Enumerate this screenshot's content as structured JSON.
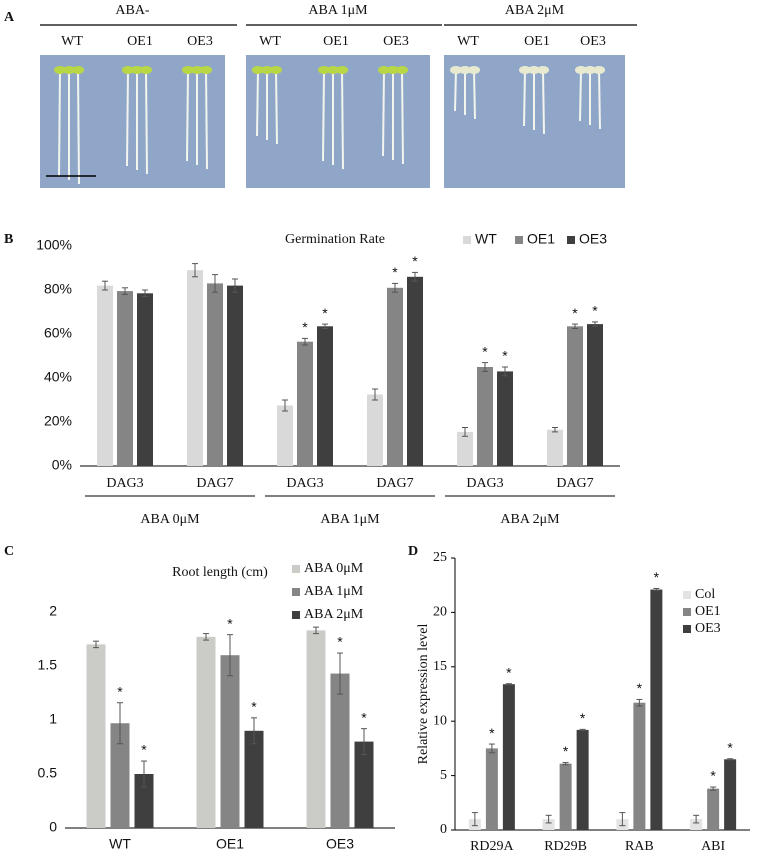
{
  "panel_a": {
    "label": "A",
    "groups": [
      {
        "label": "ABA-",
        "lines": [
          "WT",
          "OE1",
          "OE3"
        ]
      },
      {
        "label": "ABA 1μM",
        "lines": [
          "WT",
          "OE1",
          "OE3"
        ]
      },
      {
        "label": "ABA 2μM",
        "lines": [
          "WT",
          "OE1",
          "OE3"
        ]
      }
    ]
  },
  "chart_data": [
    {
      "type": "bar",
      "panel": "B",
      "title": "Germination Rate",
      "categories": [
        "DAG3",
        "DAG7",
        "DAG3",
        "DAG7",
        "DAG3",
        "DAG7"
      ],
      "group_labels": [
        "ABA 0μM",
        "ABA 1μM",
        "ABA 2μM"
      ],
      "series": [
        {
          "name": "WT",
          "color": "#d9d9d9",
          "values": [
            82,
            89,
            27.5,
            32.5,
            15.5,
            16.5
          ],
          "errors": [
            2,
            3,
            2.5,
            2.5,
            2,
            1
          ],
          "marks": [
            null,
            null,
            null,
            null,
            null,
            null
          ]
        },
        {
          "name": "OE1",
          "color": "#858585",
          "values": [
            79.5,
            83,
            56.5,
            81,
            45,
            63.5
          ],
          "errors": [
            1.5,
            4,
            1.5,
            2,
            2,
            1
          ],
          "marks": [
            null,
            null,
            "*",
            "*",
            "*",
            "*"
          ]
        },
        {
          "name": "OE3",
          "color": "#3f3f3f",
          "values": [
            78.5,
            82,
            63.5,
            86,
            43,
            64.5
          ],
          "errors": [
            1.5,
            3,
            1,
            2,
            2,
            1
          ],
          "marks": [
            null,
            null,
            "*",
            "*",
            "*",
            "*"
          ]
        }
      ],
      "ylim": [
        0,
        100
      ],
      "yticks": [
        {
          "value": 0,
          "label": "0%"
        },
        {
          "value": 20,
          "label": "20%"
        },
        {
          "value": 40,
          "label": "40%"
        },
        {
          "value": 60,
          "label": "60%"
        },
        {
          "value": 80,
          "label": "80%"
        },
        {
          "value": 100,
          "label": "100%"
        }
      ],
      "legend": "top-right"
    },
    {
      "type": "bar",
      "panel": "C",
      "title": "Root length (cm)",
      "categories": [
        "WT",
        "OE1",
        "OE3"
      ],
      "series": [
        {
          "name": "ABA 0μM",
          "color": "#cbccc8",
          "values": [
            1.7,
            1.77,
            1.83
          ],
          "errors": [
            0.03,
            0.03,
            0.03
          ],
          "marks": [
            null,
            null,
            null
          ]
        },
        {
          "name": "ABA 1μM",
          "color": "#858585",
          "values": [
            0.97,
            1.6,
            1.43
          ],
          "errors": [
            0.19,
            0.19,
            0.19
          ],
          "marks": [
            "*",
            "*",
            "*"
          ]
        },
        {
          "name": "ABA 2μM",
          "color": "#3f3f3f",
          "values": [
            0.5,
            0.9,
            0.8
          ],
          "errors": [
            0.12,
            0.12,
            0.12
          ],
          "marks": [
            "*",
            "*",
            "*"
          ]
        }
      ],
      "ylim": [
        0,
        2
      ],
      "yticks": [
        0,
        0.5,
        1,
        1.5,
        2
      ],
      "legend": "top-right"
    },
    {
      "type": "bar",
      "panel": "D",
      "ylabel": "Relative expression level",
      "categories": [
        "RD29A",
        "RD29B",
        "RAB",
        "ABI"
      ],
      "series": [
        {
          "name": "Col",
          "color": "#e3e3e3",
          "values": [
            1,
            1,
            1,
            1
          ],
          "errors": [
            0.6,
            0.35,
            0.6,
            0.35
          ],
          "marks": [
            null,
            null,
            null,
            null
          ]
        },
        {
          "name": "OE1",
          "color": "#858585",
          "values": [
            7.5,
            6.1,
            11.7,
            3.8
          ],
          "errors": [
            0.4,
            0.1,
            0.3,
            0.15
          ],
          "marks": [
            "*",
            "*",
            "*",
            "*"
          ]
        },
        {
          "name": "OE3",
          "color": "#3f3f3f",
          "values": [
            13.4,
            9.2,
            22.1,
            6.5
          ],
          "errors": [
            0.05,
            0.05,
            0.1,
            0.05
          ],
          "marks": [
            "*",
            "*",
            "*",
            "*"
          ]
        }
      ],
      "ylim": [
        0,
        25
      ],
      "yticks": [
        0,
        5,
        10,
        15,
        20,
        25
      ],
      "legend": "top-right"
    }
  ]
}
